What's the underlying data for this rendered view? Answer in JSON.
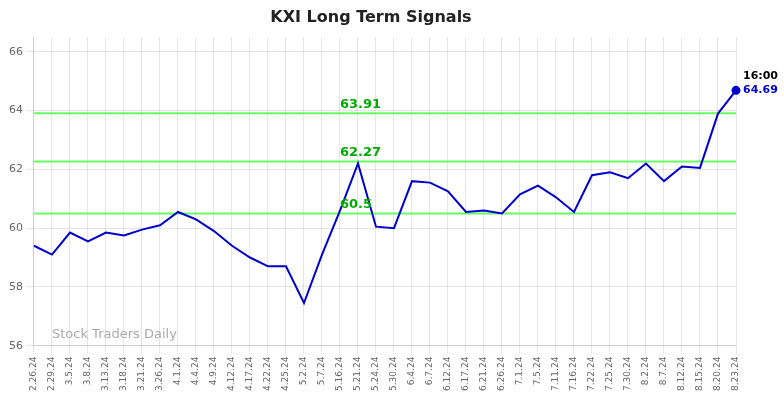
{
  "chart_data": {
    "type": "line",
    "title": "KXI Long Term Signals",
    "categories": [
      "2.26.24",
      "2.29.24",
      "3.5.24",
      "3.8.24",
      "3.13.24",
      "3.18.24",
      "3.21.24",
      "3.26.24",
      "4.1.24",
      "4.4.24",
      "4.9.24",
      "4.12.24",
      "4.17.24",
      "4.22.24",
      "4.25.24",
      "5.2.24",
      "5.7.24",
      "5.16.24",
      "5.21.24",
      "5.24.24",
      "5.30.24",
      "6.4.24",
      "6.7.24",
      "6.12.24",
      "6.17.24",
      "6.21.24",
      "6.26.24",
      "7.1.24",
      "7.5.24",
      "7.11.24",
      "7.16.24",
      "7.22.24",
      "7.25.24",
      "7.30.24",
      "8.2.24",
      "8.7.24",
      "8.12.24",
      "8.15.24",
      "8.20.24",
      "8.23.24"
    ],
    "values": [
      59.4,
      59.1,
      59.85,
      59.55,
      59.85,
      59.75,
      59.95,
      60.1,
      60.55,
      60.3,
      59.9,
      59.4,
      59.0,
      58.7,
      58.7,
      57.45,
      59.1,
      60.6,
      62.2,
      60.05,
      60.0,
      61.6,
      61.55,
      61.25,
      60.55,
      60.6,
      60.5,
      61.15,
      61.45,
      61.05,
      60.55,
      61.8,
      61.9,
      61.7,
      62.2,
      61.6,
      62.1,
      62.05,
      63.9,
      64.69
    ],
    "color": "#0000cc",
    "ylim": [
      56,
      66.5
    ],
    "yticks": [
      56,
      58,
      60,
      62,
      64,
      66
    ],
    "grid": true,
    "reference_lines": [
      {
        "value": 60.5,
        "label": "60.5",
        "color": "#66ff66",
        "label_color": "#00aa00"
      },
      {
        "value": 62.27,
        "label": "62.27",
        "color": "#66ff66",
        "label_color": "#00aa00"
      },
      {
        "value": 63.91,
        "label": "63.91",
        "color": "#66ff66",
        "label_color": "#00aa00"
      }
    ],
    "annotations": [
      {
        "text": "16:00",
        "color": "#000000"
      },
      {
        "text": "64.69",
        "color": "#0000cc"
      }
    ],
    "watermark": {
      "text": "Stock Traders Daily",
      "color": "#aaaaaa"
    }
  }
}
